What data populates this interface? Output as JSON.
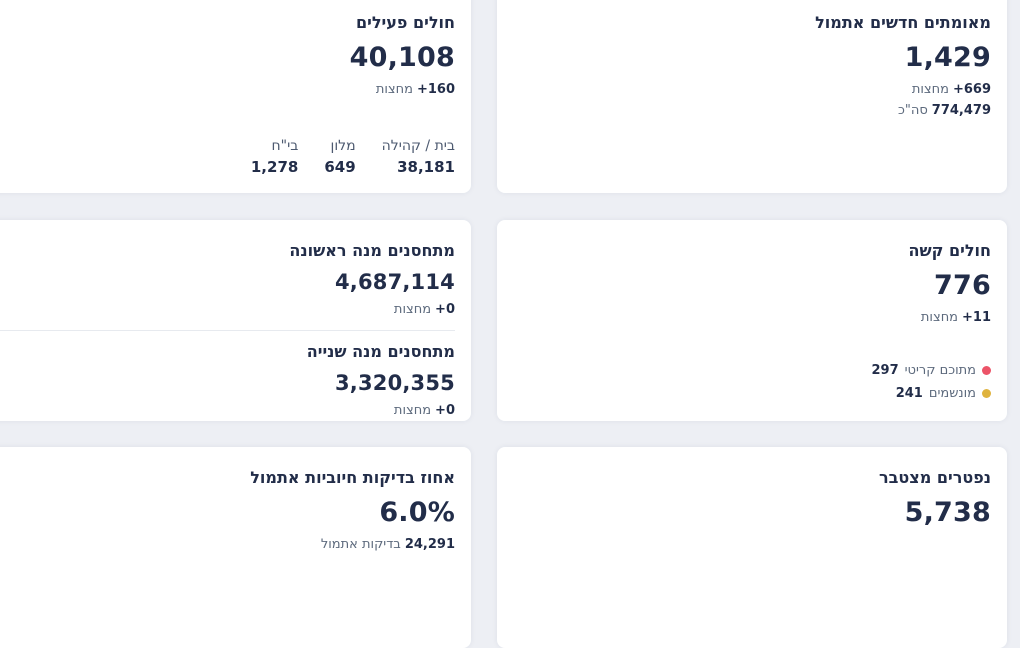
{
  "colors": {
    "background": "#edeff4",
    "card_bg": "#ffffff",
    "text_navy": "#222d49",
    "text_gray": "#5d6a7d",
    "critical_dot": "#ec5468",
    "ventilated_dot": "#dfb33e"
  },
  "cards": {
    "verified": {
      "title": "מאומתים חדשים אתמול",
      "value": "1,429",
      "stats": [
        {
          "num": "+669",
          "label": "מחצות"
        },
        {
          "num": "774,479",
          "label": "סה\"כ"
        }
      ]
    },
    "active": {
      "title": "חולים פעילים",
      "value": "40,108",
      "stats": [
        {
          "num": "+160",
          "label": "מחצות"
        }
      ],
      "breakdown": [
        {
          "label": "בית / קהילה",
          "value": "38,181"
        },
        {
          "label": "מלון",
          "value": "649"
        },
        {
          "label": "בי\"ח",
          "value": "1,278"
        }
      ]
    },
    "severe": {
      "title": "חולים קשה",
      "value": "776",
      "stats": [
        {
          "num": "+11",
          "label": "מחצות"
        }
      ],
      "legend": [
        {
          "label": "מתוכם קריטי",
          "value": "297",
          "color": "#ec5468"
        },
        {
          "label": "מונשמים",
          "value": "241",
          "color": "#dfb33e"
        }
      ]
    },
    "vaccine_first": {
      "title": "מתחסנים מנה ראשונה",
      "value": "4,687,114",
      "stats": [
        {
          "num": "+0",
          "label": "מחצות"
        }
      ]
    },
    "vaccine_second": {
      "title": "מתחסנים מנה שנייה",
      "value": "3,320,355",
      "stats": [
        {
          "num": "+0",
          "label": "מחצות"
        }
      ]
    },
    "deaths": {
      "title": "נפטרים מצטבר",
      "value": "5,738"
    },
    "positive_tests": {
      "title": "אחוז בדיקות חיוביות אתמול",
      "value": "6.0%",
      "stats": [
        {
          "num": "24,291",
          "label": "בדיקות אתמול"
        }
      ]
    }
  }
}
